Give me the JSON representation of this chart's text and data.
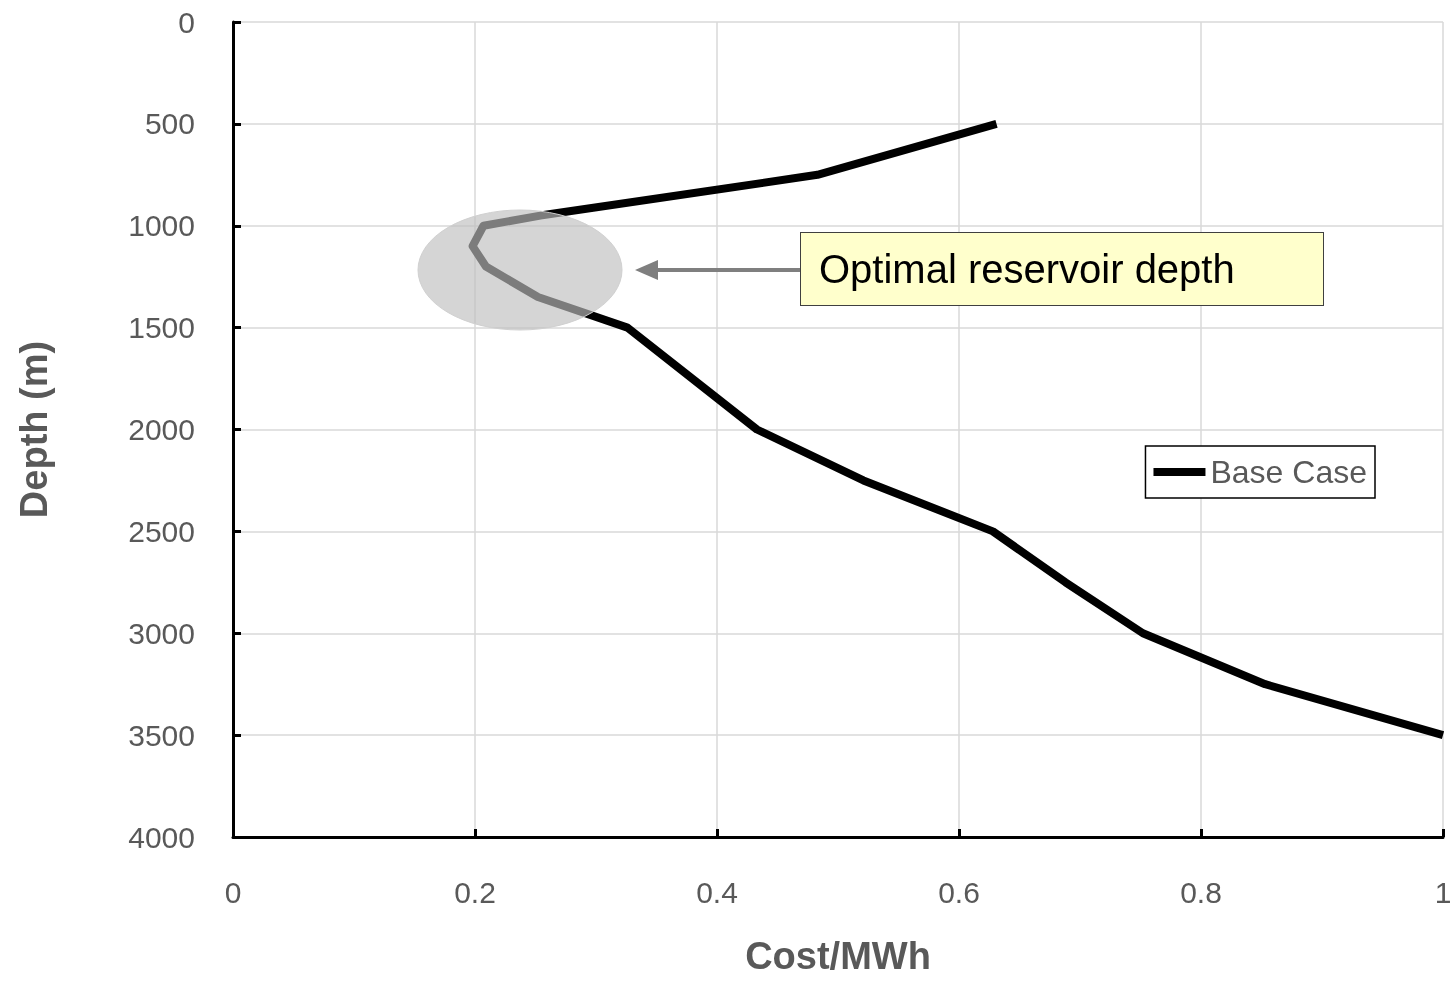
{
  "chart_data": {
    "type": "line",
    "xlabel": "Cost/MWh",
    "ylabel": "Depth (m)",
    "xlim": [
      0,
      1
    ],
    "xticks": [
      0,
      0.2,
      0.4,
      0.6,
      0.8,
      1
    ],
    "ylim": [
      4000,
      0
    ],
    "yticks": [
      0,
      500,
      1000,
      1500,
      2000,
      2500,
      3000,
      3500,
      4000
    ],
    "grid": true,
    "legend": "right",
    "marker": "none",
    "line_style": "solid",
    "series": [
      {
        "name": "Base Case",
        "color": "#000000",
        "x": [
          0.631,
          0.483,
          0.254,
          0.207,
          0.198,
          0.209,
          0.252,
          0.326,
          0.433,
          0.521,
          0.628,
          0.688,
          0.752,
          0.853,
          1.0
        ],
        "values": [
          500,
          750,
          950,
          1000,
          1100,
          1200,
          1350,
          1500,
          2000,
          2250,
          2500,
          2750,
          3000,
          3250,
          3500
        ]
      }
    ],
    "annotations": [
      "Optimal reservoir depth"
    ]
  }
}
